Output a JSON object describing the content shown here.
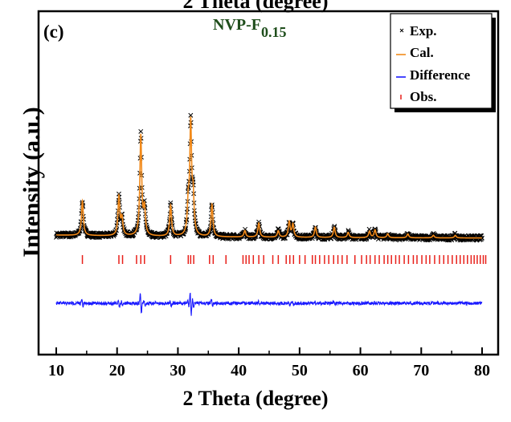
{
  "header": {
    "top_clipped_label": "2 Theta (degree)"
  },
  "panel_label": "(c)",
  "sample": {
    "name": "NVP-F",
    "subscript": "0.15"
  },
  "colors": {
    "exp": "#000000",
    "cal": "#f28a1a",
    "difference": "#1a1aff",
    "obs": "#e8201a",
    "sample_text": "#1f4e1c"
  },
  "chart_data": {
    "type": "line",
    "title": "",
    "xlabel": "2 Theta (degree)",
    "ylabel": "Intensity (a.u.)",
    "xlim": [
      10,
      80
    ],
    "xticks": [
      10,
      20,
      30,
      40,
      50,
      60,
      70,
      80
    ],
    "y_ticks_shown": false,
    "legend": {
      "placement": "top-right",
      "entries": [
        "Exp.",
        "Cal.",
        "Difference",
        "Obs."
      ]
    },
    "peaks": [
      {
        "x": 14.3,
        "intensity": 0.27
      },
      {
        "x": 20.3,
        "intensity": 0.3
      },
      {
        "x": 20.8,
        "intensity": 0.13
      },
      {
        "x": 23.9,
        "intensity": 0.78
      },
      {
        "x": 24.5,
        "intensity": 0.2
      },
      {
        "x": 28.8,
        "intensity": 0.24
      },
      {
        "x": 31.7,
        "intensity": 0.22
      },
      {
        "x": 32.1,
        "intensity": 0.85
      },
      {
        "x": 32.5,
        "intensity": 0.28
      },
      {
        "x": 35.6,
        "intensity": 0.25
      },
      {
        "x": 41.0,
        "intensity": 0.05
      },
      {
        "x": 43.3,
        "intensity": 0.11
      },
      {
        "x": 46.5,
        "intensity": 0.05
      },
      {
        "x": 48.3,
        "intensity": 0.12
      },
      {
        "x": 48.9,
        "intensity": 0.1
      },
      {
        "x": 52.6,
        "intensity": 0.08
      },
      {
        "x": 55.7,
        "intensity": 0.08
      },
      {
        "x": 58.0,
        "intensity": 0.04
      },
      {
        "x": 61.5,
        "intensity": 0.05
      },
      {
        "x": 62.4,
        "intensity": 0.06
      },
      {
        "x": 64.5,
        "intensity": 0.03
      },
      {
        "x": 67.8,
        "intensity": 0.03
      },
      {
        "x": 72.0,
        "intensity": 0.02
      },
      {
        "x": 75.6,
        "intensity": 0.02
      }
    ],
    "obs_positions": [
      14.3,
      20.3,
      20.9,
      23.2,
      23.9,
      24.5,
      28.8,
      31.7,
      32.1,
      32.6,
      35.2,
      35.8,
      37.9,
      40.7,
      41.2,
      41.7,
      42.4,
      43.3,
      44.1,
      45.6,
      46.5,
      47.8,
      48.4,
      49.0,
      50.0,
      50.9,
      52.1,
      52.6,
      53.3,
      54.1,
      54.8,
      55.6,
      56.3,
      57.0,
      57.8,
      59.1,
      60.2,
      61.0,
      61.6,
      62.4,
      63.1,
      63.9,
      64.5,
      65.1,
      65.8,
      66.4,
      67.2,
      67.9,
      68.7,
      69.3,
      70.1,
      70.8,
      71.4,
      72.2,
      73.0,
      73.7,
      74.4,
      75.1,
      75.8,
      76.4,
      77.0,
      77.6,
      78.2,
      78.7,
      79.2,
      79.7,
      80.2,
      80.6
    ]
  }
}
